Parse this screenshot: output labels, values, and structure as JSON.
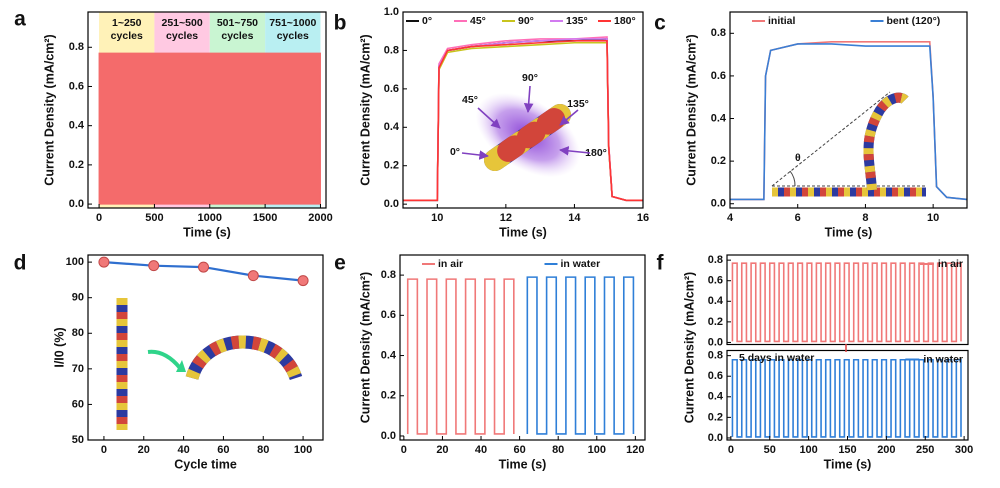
{
  "chart_data": [
    {
      "label": "a",
      "type": "area",
      "x": [
        0,
        2000
      ],
      "values": [
        0.77,
        0.77
      ],
      "color": "#f46b6b",
      "xlim": [
        -100,
        2050
      ],
      "ylim": [
        -0.02,
        0.98
      ],
      "xticks": [
        0,
        500,
        1000,
        1500,
        2000
      ],
      "yticks": [
        {
          "value": 0,
          "label": "0.0"
        },
        0.2,
        0.4,
        0.6,
        0.8
      ],
      "x_label": "Time (s)",
      "y_label": "Current Density (mA/cm²)",
      "regions": [
        {
          "text": [
            "1~250",
            "cycles"
          ],
          "from": 0,
          "to": 500,
          "color": "#fff2b8"
        },
        {
          "text": [
            "251~500",
            "cycles"
          ],
          "from": 500,
          "to": 1000,
          "color": "#ffc9e2"
        },
        {
          "text": [
            "501~750",
            "cycles"
          ],
          "from": 1000,
          "to": 1500,
          "color": "#c9f5d2"
        },
        {
          "text": [
            "751~1000",
            "cycles"
          ],
          "from": 1500,
          "to": 2000,
          "color": "#b9eff2"
        }
      ]
    },
    {
      "label": "b",
      "type": "line",
      "x": [
        9,
        9.9,
        10,
        10.05,
        10.3,
        11,
        12,
        13,
        14,
        14.95,
        15,
        15.1,
        15.5,
        16
      ],
      "series": [
        {
          "name": "0°",
          "color": "#111111",
          "values": [
            0.02,
            0.02,
            0.02,
            0.72,
            0.8,
            0.82,
            0.84,
            0.85,
            0.85,
            0.86,
            0.3,
            0.04,
            0.02,
            0.02
          ]
        },
        {
          "name": "45°",
          "color": "#ff6fb8",
          "values": [
            0.02,
            0.02,
            0.02,
            0.73,
            0.81,
            0.83,
            0.85,
            0.86,
            0.86,
            0.87,
            0.31,
            0.04,
            0.02,
            0.02
          ]
        },
        {
          "name": "90°",
          "color": "#c8c41e",
          "values": [
            0.02,
            0.02,
            0.02,
            0.7,
            0.79,
            0.81,
            0.82,
            0.83,
            0.84,
            0.84,
            0.29,
            0.04,
            0.02,
            0.02
          ]
        },
        {
          "name": "135°",
          "color": "#d27bf0",
          "values": [
            0.02,
            0.02,
            0.02,
            0.72,
            0.8,
            0.82,
            0.84,
            0.85,
            0.86,
            0.86,
            0.3,
            0.04,
            0.02,
            0.02
          ]
        },
        {
          "name": "180°",
          "color": "#ff3434",
          "values": [
            0.02,
            0.02,
            0.02,
            0.71,
            0.8,
            0.82,
            0.83,
            0.84,
            0.85,
            0.85,
            0.3,
            0.04,
            0.02,
            0.02
          ]
        }
      ],
      "xlim": [
        9,
        16
      ],
      "ylim": [
        -0.02,
        1.0
      ],
      "xticks": [
        10,
        12,
        14,
        16
      ],
      "yticks": [
        {
          "value": 0,
          "label": "0.0"
        },
        0.2,
        0.4,
        0.6,
        0.8,
        {
          "value": 1,
          "label": "1.0"
        }
      ],
      "legend": "top",
      "x_label": "Time (s)",
      "y_label": "Current Density (mA/cm²)"
    },
    {
      "label": "c",
      "type": "line",
      "x": [
        4,
        5,
        5.05,
        5.2,
        6,
        7,
        8,
        9,
        9.9,
        10,
        10.1,
        10.4,
        11
      ],
      "series": [
        {
          "name": "initial",
          "color": "#f07878",
          "values": [
            0.02,
            0.02,
            0.6,
            0.72,
            0.75,
            0.76,
            0.76,
            0.76,
            0.76,
            0.5,
            0.08,
            0.03,
            0.02
          ]
        },
        {
          "name": "bent (120°)",
          "color": "#3a7fd5",
          "values": [
            0.02,
            0.02,
            0.6,
            0.72,
            0.75,
            0.75,
            0.74,
            0.74,
            0.74,
            0.5,
            0.08,
            0.03,
            0.02
          ]
        }
      ],
      "xlim": [
        4,
        11
      ],
      "ylim": [
        -0.02,
        0.9
      ],
      "xticks": [
        4,
        6,
        8,
        10
      ],
      "yticks": [
        {
          "value": 0,
          "label": "0.0"
        },
        0.2,
        0.4,
        0.6,
        0.8
      ],
      "legend": "top",
      "x_label": "Time (s)",
      "y_label": "Current Density (mA/cm²)",
      "annotations": [
        "θ"
      ]
    },
    {
      "label": "d",
      "type": "scatter",
      "x": [
        0,
        25,
        50,
        75,
        100
      ],
      "values": [
        100,
        99,
        98.6,
        96.2,
        94.8
      ],
      "color": "#f07878",
      "line_color": "#2f6fcf",
      "xlim": [
        -8,
        110
      ],
      "ylim": [
        50,
        102
      ],
      "xticks": [
        0,
        20,
        40,
        60,
        80,
        100
      ],
      "yticks": [
        50,
        60,
        70,
        80,
        90,
        100
      ],
      "x_label": "Cycle time",
      "y_label": "I/I0 (%)"
    },
    {
      "label": "e",
      "type": "line",
      "series": [
        {
          "name": "in air",
          "color": "#f07878",
          "x": [
            2,
            2,
            7,
            7,
            12,
            12,
            17,
            17,
            22,
            22,
            27,
            27,
            32,
            32,
            37,
            37,
            42,
            42,
            47,
            47,
            52,
            52,
            57,
            57
          ],
          "values": [
            0.01,
            0.78,
            0.78,
            0.01,
            0.01,
            0.78,
            0.78,
            0.01,
            0.01,
            0.78,
            0.78,
            0.01,
            0.01,
            0.78,
            0.78,
            0.01,
            0.01,
            0.78,
            0.78,
            0.01,
            0.01,
            0.78,
            0.78,
            0.01
          ]
        },
        {
          "name": "in water",
          "color": "#2f7fd8",
          "x": [
            64,
            64,
            69,
            69,
            74,
            74,
            79,
            79,
            84,
            84,
            89,
            89,
            94,
            94,
            99,
            99,
            104,
            104,
            109,
            109,
            114,
            114,
            119,
            119
          ],
          "values": [
            0.01,
            0.79,
            0.79,
            0.01,
            0.01,
            0.79,
            0.79,
            0.01,
            0.01,
            0.79,
            0.79,
            0.01,
            0.01,
            0.79,
            0.79,
            0.01,
            0.01,
            0.79,
            0.79,
            0.01,
            0.01,
            0.79,
            0.79,
            0.01
          ]
        }
      ],
      "xlim": [
        -2,
        125
      ],
      "ylim": [
        -0.02,
        0.9
      ],
      "xticks": [
        0,
        20,
        40,
        60,
        80,
        100,
        120
      ],
      "yticks": [
        {
          "value": 0,
          "label": "0.0"
        },
        0.2,
        0.4,
        0.6,
        0.8
      ],
      "legend": "top",
      "x_label": "Time (s)",
      "y_label": "Current Density (mA/cm²)"
    },
    {
      "label": "f",
      "type": "line",
      "split_panels": true,
      "legend": "panel-right",
      "x": [
        2,
        2,
        8,
        8,
        14,
        14,
        20,
        20,
        26,
        26,
        32,
        32,
        38,
        38,
        44,
        44,
        50,
        50,
        56,
        56,
        62,
        62,
        68,
        68,
        74,
        74,
        80,
        80,
        86,
        86,
        92,
        92,
        98,
        98,
        104,
        104,
        110,
        110,
        116,
        116,
        122,
        122,
        128,
        128,
        134,
        134,
        140,
        140,
        146,
        146,
        152,
        152,
        158,
        158,
        164,
        164,
        170,
        170,
        176,
        176,
        182,
        182,
        188,
        188,
        194,
        194,
        200,
        200,
        206,
        206,
        212,
        212,
        218,
        218,
        224,
        224,
        230,
        230,
        236,
        236,
        242,
        242,
        248,
        248,
        254,
        254,
        260,
        260,
        266,
        266,
        272,
        272,
        278,
        278,
        284,
        284,
        290,
        290,
        296,
        296
      ],
      "series": [
        {
          "name": "in air",
          "color": "#f07878",
          "values": [
            0.01,
            0.77,
            0.77,
            0.01,
            0.01,
            0.77,
            0.77,
            0.01,
            0.01,
            0.77,
            0.77,
            0.01,
            0.01,
            0.77,
            0.77,
            0.01,
            0.01,
            0.77,
            0.77,
            0.01,
            0.01,
            0.77,
            0.77,
            0.01,
            0.01,
            0.77,
            0.77,
            0.01,
            0.01,
            0.77,
            0.77,
            0.01,
            0.01,
            0.77,
            0.77,
            0.01,
            0.01,
            0.77,
            0.77,
            0.01,
            0.01,
            0.77,
            0.77,
            0.01,
            0.01,
            0.77,
            0.77,
            0.01,
            0.01,
            0.77,
            0.77,
            0.01,
            0.01,
            0.77,
            0.77,
            0.01,
            0.01,
            0.77,
            0.77,
            0.01,
            0.01,
            0.77,
            0.77,
            0.01,
            0.01,
            0.77,
            0.77,
            0.01,
            0.01,
            0.77,
            0.77,
            0.01,
            0.01,
            0.77,
            0.77,
            0.01,
            0.01,
            0.77,
            0.77,
            0.01,
            0.01,
            0.77,
            0.77,
            0.01,
            0.01,
            0.77,
            0.77,
            0.01,
            0.01,
            0.77,
            0.77,
            0.01,
            0.01,
            0.77,
            0.77,
            0.01,
            0.01,
            0.77,
            0.77,
            0.01
          ]
        },
        {
          "name": "in water",
          "color": "#2f7fd8",
          "values": [
            0.01,
            0.76,
            0.76,
            0.01,
            0.01,
            0.76,
            0.76,
            0.01,
            0.01,
            0.76,
            0.76,
            0.01,
            0.01,
            0.76,
            0.76,
            0.01,
            0.01,
            0.76,
            0.76,
            0.01,
            0.01,
            0.76,
            0.76,
            0.01,
            0.01,
            0.76,
            0.76,
            0.01,
            0.01,
            0.76,
            0.76,
            0.01,
            0.01,
            0.76,
            0.76,
            0.01,
            0.01,
            0.76,
            0.76,
            0.01,
            0.01,
            0.76,
            0.76,
            0.01,
            0.01,
            0.76,
            0.76,
            0.01,
            0.01,
            0.76,
            0.76,
            0.01,
            0.01,
            0.76,
            0.76,
            0.01,
            0.01,
            0.76,
            0.76,
            0.01,
            0.01,
            0.76,
            0.76,
            0.01,
            0.01,
            0.76,
            0.76,
            0.01,
            0.01,
            0.76,
            0.76,
            0.01,
            0.01,
            0.76,
            0.76,
            0.01,
            0.01,
            0.76,
            0.76,
            0.01,
            0.01,
            0.76,
            0.76,
            0.01,
            0.01,
            0.76,
            0.76,
            0.01,
            0.01,
            0.76,
            0.76,
            0.01,
            0.01,
            0.76,
            0.76,
            0.01,
            0.01,
            0.76,
            0.76,
            0.01
          ]
        }
      ],
      "xlim": [
        -5,
        305
      ],
      "ylim": [
        -0.02,
        0.85
      ],
      "xticks": [
        0,
        50,
        100,
        150,
        200,
        250,
        300
      ],
      "yticks": [
        {
          "value": 0,
          "label": "0.0"
        },
        0.2,
        0.4,
        0.6,
        0.8
      ],
      "x_label": "Time (s)",
      "y_label": "Current Density (mA/cm²)",
      "annotations": [
        "5 days in water"
      ]
    }
  ]
}
